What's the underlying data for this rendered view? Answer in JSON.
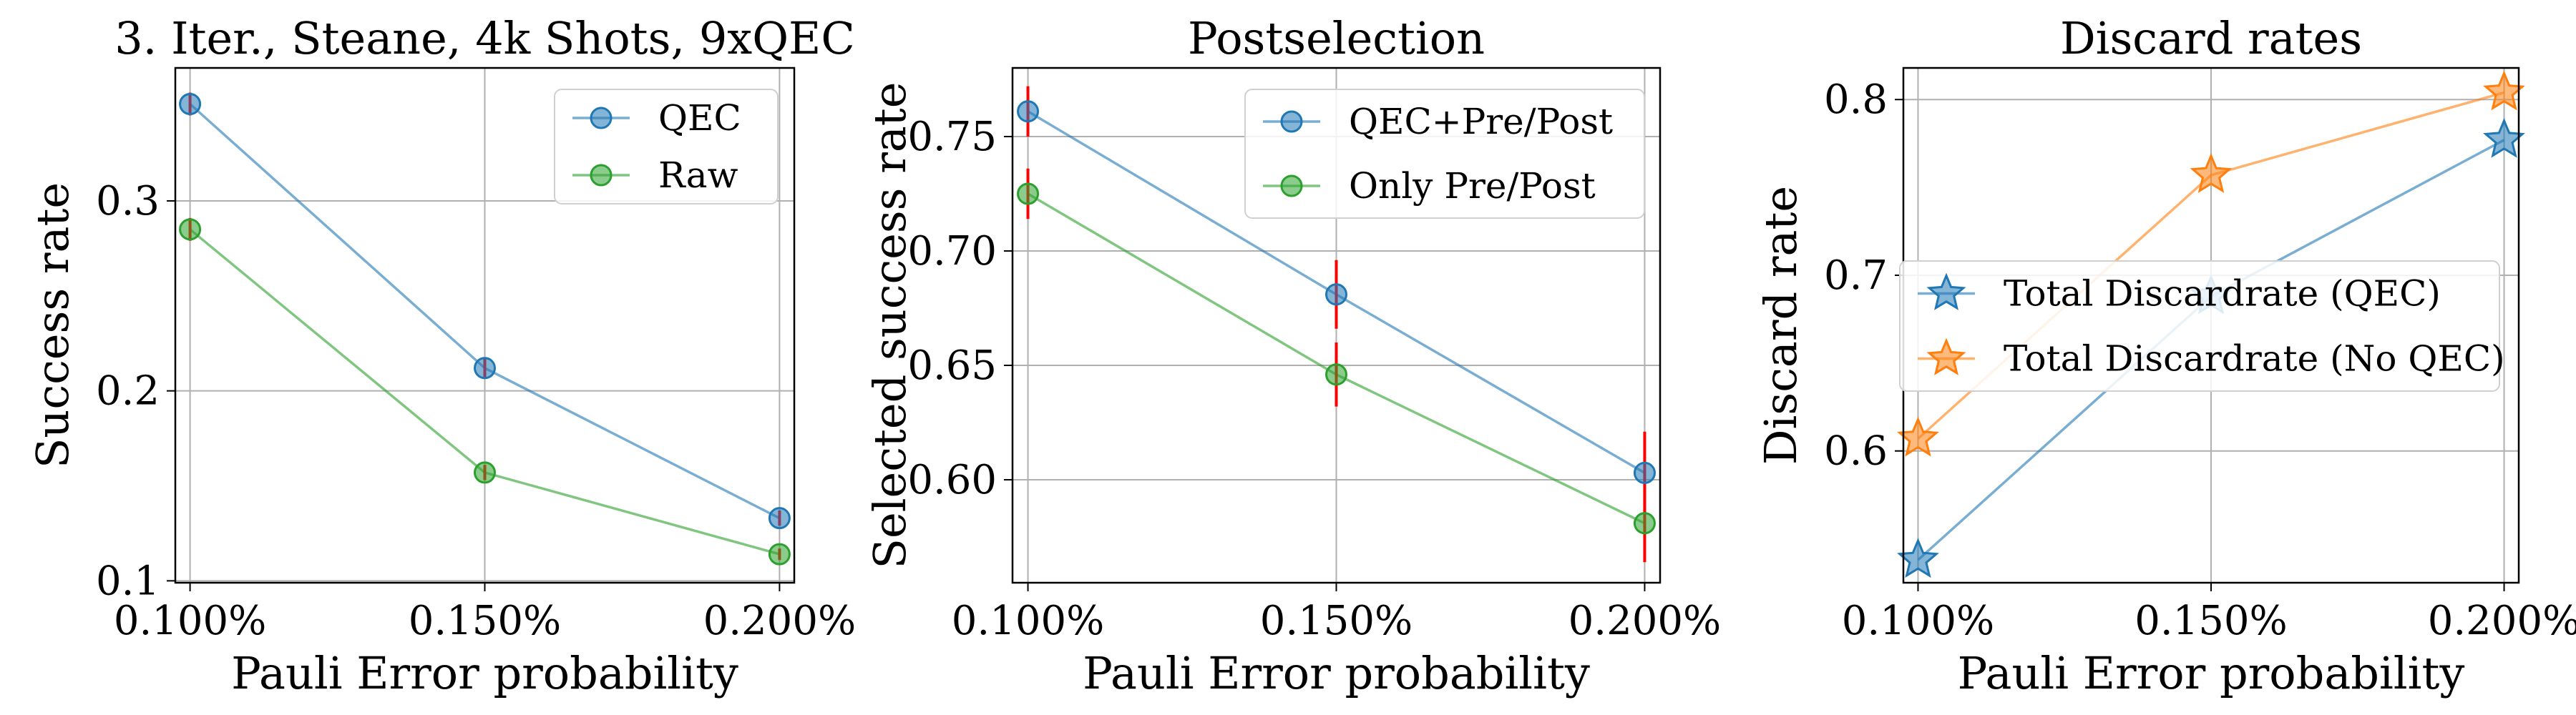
{
  "colors": {
    "blue": "#1f77b4",
    "green": "#2ca02c",
    "orange": "#ff7f0e",
    "error_bar": "#ff0000",
    "grid": "#b0b0b0",
    "frame": "#000000"
  },
  "chart_data": [
    {
      "type": "line",
      "title": "3. Iter., Steane, 4k Shots, 9xQEC",
      "xlabel": "Pauli Error probability",
      "ylabel": "Success rate",
      "x": [
        0.1,
        0.15,
        0.2
      ],
      "x_tick_labels": [
        "0.100%",
        "0.150%",
        "0.200%"
      ],
      "y_ticks": [
        0.1,
        0.2,
        0.3
      ],
      "y_tick_labels": [
        "0.1",
        "0.2",
        "0.3"
      ],
      "ylim": [
        0.099,
        0.37
      ],
      "grid": true,
      "legend": "top-right",
      "series": [
        {
          "name": "QEC",
          "color": "blue",
          "marker": "circle",
          "values": [
            0.351,
            0.212,
            0.133
          ],
          "err": [
            0.006,
            0.005,
            0.004
          ]
        },
        {
          "name": "Raw",
          "color": "green",
          "marker": "circle",
          "values": [
            0.285,
            0.157,
            0.114
          ],
          "err": [
            0.006,
            0.004,
            0.003
          ]
        }
      ]
    },
    {
      "type": "line",
      "title": "Postselection",
      "xlabel": "Pauli Error probability",
      "ylabel": "Selected success rate",
      "x": [
        0.1,
        0.15,
        0.2
      ],
      "x_tick_labels": [
        "0.100%",
        "0.150%",
        "0.200%"
      ],
      "y_ticks": [
        0.6,
        0.65,
        0.7,
        0.75
      ],
      "y_tick_labels": [
        "0.60",
        "0.65",
        "0.70",
        "0.75"
      ],
      "ylim": [
        0.555,
        0.78
      ],
      "grid": true,
      "legend": "top-right",
      "series": [
        {
          "name": "QEC+Pre/Post",
          "color": "blue",
          "marker": "circle",
          "values": [
            0.761,
            0.681,
            0.603
          ],
          "err": [
            0.011,
            0.015,
            0.018
          ]
        },
        {
          "name": "Only Pre/Post",
          "color": "green",
          "marker": "circle",
          "values": [
            0.725,
            0.646,
            0.581
          ],
          "err": [
            0.011,
            0.014,
            0.017
          ]
        }
      ]
    },
    {
      "type": "line",
      "title": "Discard rates",
      "xlabel": "Pauli Error probability",
      "ylabel": "Discard rate",
      "x": [
        0.1,
        0.15,
        0.2
      ],
      "x_tick_labels": [
        "0.100%",
        "0.150%",
        "0.200%"
      ],
      "y_ticks": [
        0.6,
        0.7,
        0.8
      ],
      "y_tick_labels": [
        "0.6",
        "0.7",
        "0.8"
      ],
      "ylim": [
        0.525,
        0.818
      ],
      "grid": true,
      "legend": "center-right",
      "series": [
        {
          "name": "Total Discardrate (QEC)",
          "color": "blue",
          "marker": "star",
          "values": [
            0.538,
            0.688,
            0.777
          ]
        },
        {
          "name": "Total Discardrate (No QEC)",
          "color": "orange",
          "marker": "star",
          "values": [
            0.607,
            0.757,
            0.804
          ]
        }
      ]
    }
  ]
}
